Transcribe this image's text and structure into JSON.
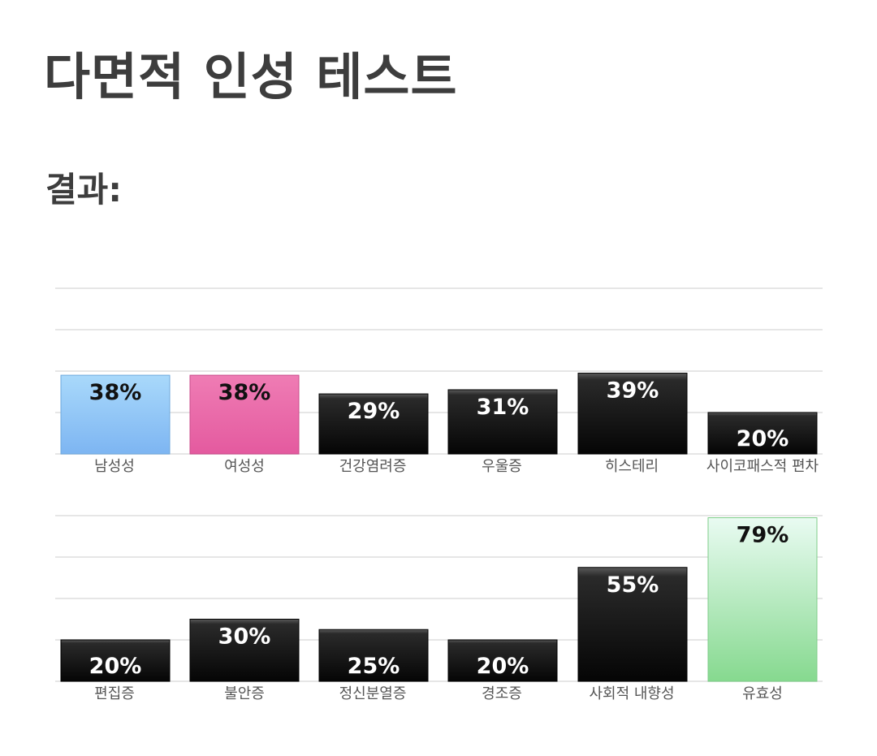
{
  "title": "다면적 인성 테스트",
  "results_heading": "결과:",
  "colors": {
    "male": "#8dc4f6",
    "female": "#e868a9",
    "default": "#1a1a1a",
    "validity": "#a5e6b3",
    "grid": "#e6e6e6"
  },
  "chart_data": [
    {
      "type": "bar",
      "categories": [
        "남성성",
        "여성성",
        "건강염려증",
        "우울증",
        "히스테리",
        "사이코패스적 편차"
      ],
      "values": [
        38,
        38,
        29,
        31,
        39,
        20
      ],
      "value_labels": [
        "38%",
        "38%",
        "29%",
        "31%",
        "39%",
        "20%"
      ],
      "bar_styles": [
        "male",
        "female",
        "default",
        "default",
        "default",
        "default"
      ],
      "ylim": [
        0,
        80
      ],
      "grid": true
    },
    {
      "type": "bar",
      "categories": [
        "편집증",
        "불안증",
        "정신분열증",
        "경조증",
        "사회적 내향성",
        "유효성"
      ],
      "values": [
        20,
        30,
        25,
        20,
        55,
        79
      ],
      "value_labels": [
        "20%",
        "30%",
        "25%",
        "20%",
        "55%",
        "79%"
      ],
      "bar_styles": [
        "default",
        "default",
        "default",
        "default",
        "default",
        "validity"
      ],
      "ylim": [
        0,
        80
      ],
      "grid": true
    }
  ]
}
